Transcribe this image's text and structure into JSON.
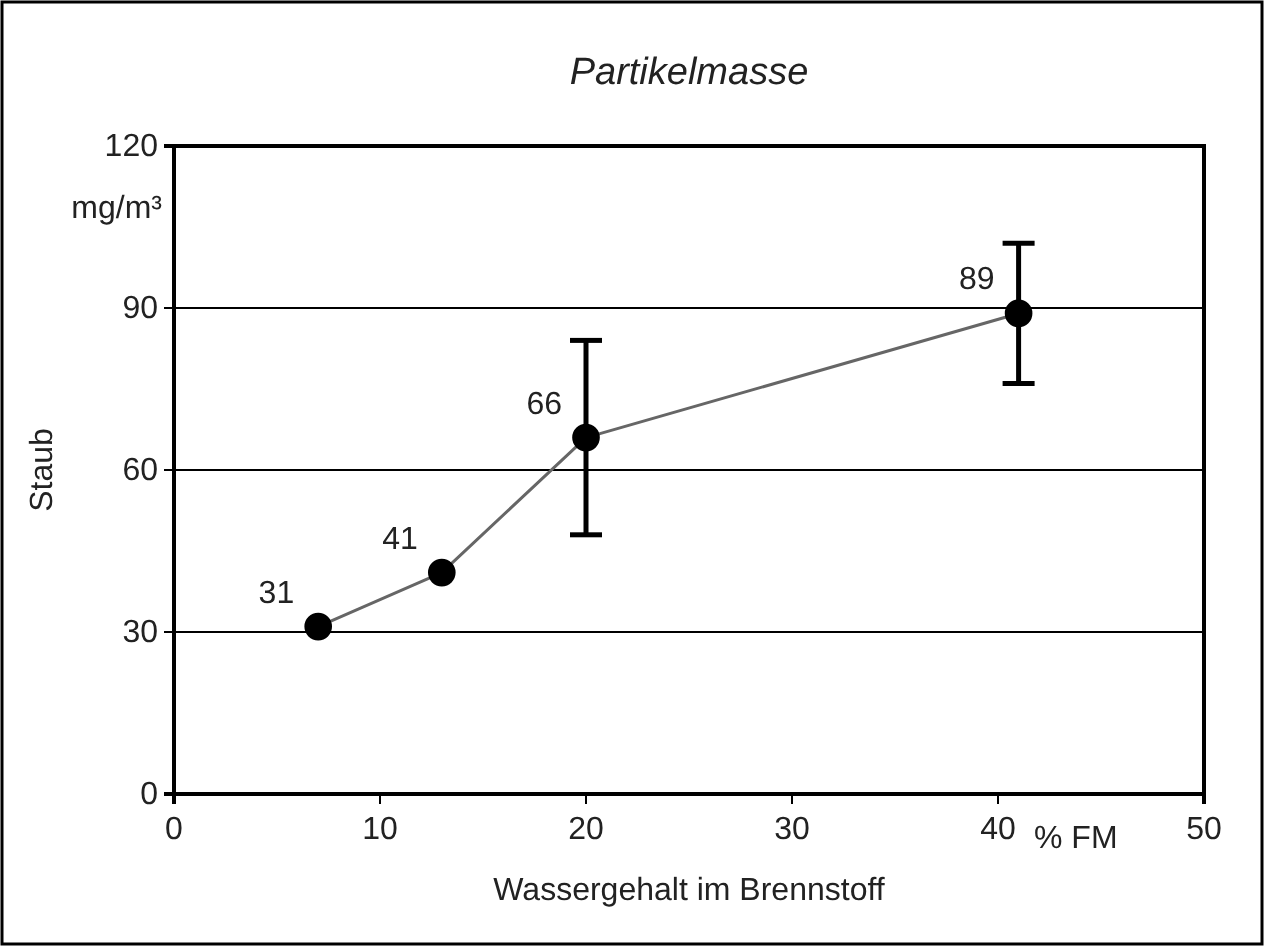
{
  "chart_data": {
    "type": "line",
    "title": "Partikelmasse",
    "xlabel": "Wassergehalt im Brennstoff",
    "ylabel": "Staub",
    "annotations": [
      "mg/m³",
      "% FM"
    ],
    "x": [
      7,
      13,
      20,
      41
    ],
    "series": [
      {
        "color": "#000000",
        "values": [
          31,
          41,
          66,
          89
        ],
        "errors": [
          null,
          null,
          [
            48,
            84
          ],
          [
            76,
            102
          ]
        ]
      }
    ],
    "xlim": [
      0,
      50
    ],
    "xticks": [
      0,
      10,
      20,
      30,
      40,
      50
    ],
    "ylim": [
      0,
      120
    ],
    "yticks": [
      0,
      30,
      60,
      90,
      120
    ],
    "grid": "y",
    "marker": "circle",
    "line_style": "solid",
    "data_labels": true
  }
}
